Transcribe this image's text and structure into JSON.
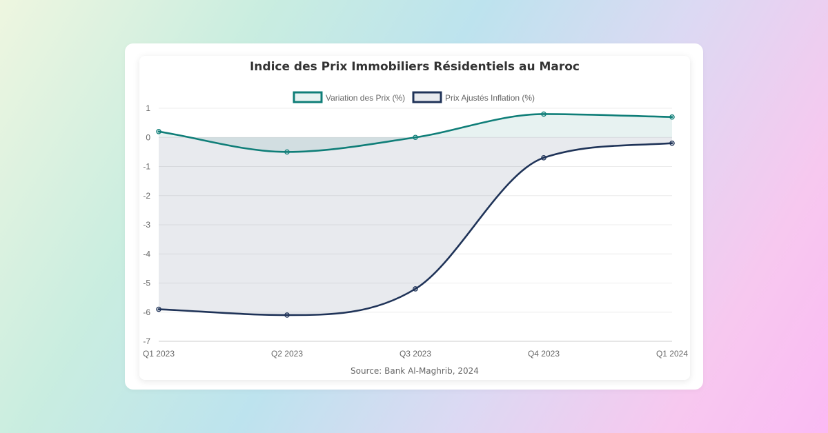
{
  "chart_data": {
    "type": "area",
    "title": "Indice des Prix Immobiliers Résidentiels au Maroc",
    "categories": [
      "Q1 2023",
      "Q2 2023",
      "Q3 2023",
      "Q4 2023",
      "Q1 2024"
    ],
    "series": [
      {
        "name": "Variation des Prix (%)",
        "values": [
          0.2,
          -0.5,
          0.0,
          0.8,
          0.7
        ],
        "color": "#0f7e78",
        "fill": "rgba(15,126,120,0.10)"
      },
      {
        "name": "Prix Ajustés Inflation (%)",
        "values": [
          -5.9,
          -6.1,
          -5.2,
          -0.7,
          -0.2
        ],
        "color": "#1f3358",
        "fill": "rgba(31,51,88,0.10)"
      }
    ],
    "ylim": [
      -7,
      1
    ],
    "yticks": [
      "1",
      "0",
      "-1",
      "-2",
      "-3",
      "-4",
      "-5",
      "-6",
      "-7"
    ],
    "grid": true,
    "legend": "top",
    "source": "Source: Bank Al-Maghrib, 2024"
  }
}
